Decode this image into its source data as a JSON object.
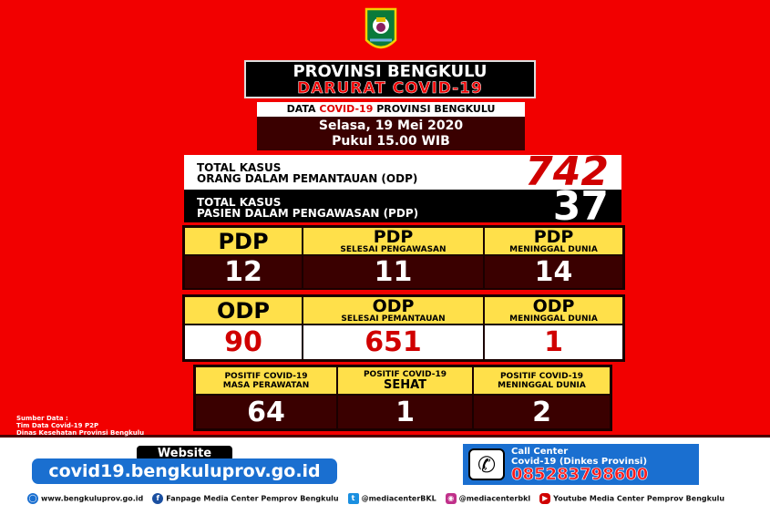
{
  "header": {
    "title": "PROVINSI BENGKULU",
    "subtitle": "DARURAT COVID-19"
  },
  "data_label": {
    "pre": "DATA ",
    "highlight": "COVID-19",
    "post": " PROVINSI BENGKULU"
  },
  "date": {
    "day": "Selasa, 19 Mei 2020",
    "time": "Pukul 15.00 WIB"
  },
  "totals": [
    {
      "line1": "TOTAL KASUS",
      "line2": "ORANG DALAM PEMANTAUAN (ODP)",
      "value": "742"
    },
    {
      "line1": "TOTAL KASUS",
      "line2": "PASIEN DALAM PENGAWASAN (PDP)",
      "value": "37"
    }
  ],
  "pdp": [
    {
      "title": "PDP",
      "sub": "",
      "value": "12"
    },
    {
      "title": "PDP",
      "sub": "SELESAI PENGAWASAN",
      "value": "11"
    },
    {
      "title": "PDP",
      "sub": "MENINGGAL DUNIA",
      "value": "14"
    }
  ],
  "odp": [
    {
      "title": "ODP",
      "sub": "",
      "value": "90"
    },
    {
      "title": "ODP",
      "sub": "SELESAI PEMANTAUAN",
      "value": "651"
    },
    {
      "title": "ODP",
      "sub": "MENINGGAL DUNIA",
      "value": "1"
    }
  ],
  "positif": [
    {
      "line1": "POSITIF COVID-19",
      "line2": "MASA PERAWATAN",
      "value": "64"
    },
    {
      "line1": "POSITIF COVID-19",
      "line2": "SEHAT",
      "value": "1"
    },
    {
      "line1": "POSITIF COVID-19",
      "line2": "MENINGGAL DUNIA",
      "value": "2"
    }
  ],
  "source": {
    "line1": "Sumber Data :",
    "line2": "Tim Data Covid-19 P2P",
    "line3": "Dinas Kesehatan Provinsi Bengkulu"
  },
  "website": {
    "label": "Website",
    "url": "covid19.bengkuluprov.go.id"
  },
  "call_center": {
    "line1": "Call Center",
    "line2": "Covid-19 (Dinkes Provinsi)",
    "number": "085283798600",
    "icon": "phone-icon"
  },
  "social": [
    {
      "icon": "globe-icon",
      "text": "www.bengkuluprov.go.id",
      "color": "#1a6fd0"
    },
    {
      "icon": "facebook-icon",
      "text": "Fanpage Media Center Pemprov Bengkulu",
      "color": "#1a4fa0"
    },
    {
      "icon": "twitter-icon",
      "text": "@mediacenterBKL",
      "color": "#1a8fe0"
    },
    {
      "icon": "instagram-icon",
      "text": "@mediacenterbkl",
      "color": "#c0308a"
    },
    {
      "icon": "youtube-icon",
      "text": "Youtube Media Center Pemprov Bengkulu",
      "color": "#d00000"
    }
  ],
  "colors": {
    "background": "#f20000",
    "dark": "#3a0000",
    "yellow": "#ffe04a",
    "blue": "#1a6fd0"
  }
}
